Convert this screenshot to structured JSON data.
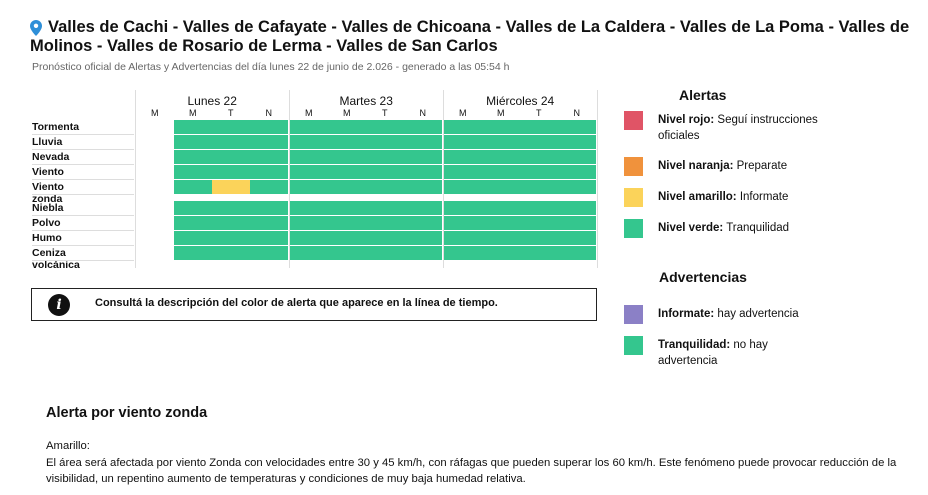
{
  "header": {
    "title_line1": "Valles de Cachi - Valles de Cafayate - Valles de Chicoana - Valles de La Caldera - Valles de La Poma - Valles de",
    "title_line2": "Molinos - Valles de Rosario de Lerma - Valles de San Carlos",
    "subtitle": "Pronóstico oficial de Alertas y Advertencias del día lunes 22 de junio de 2.026 - generado a las 05:54 h"
  },
  "timeline": {
    "days": [
      {
        "label": "Lunes 22",
        "slots": [
          "M",
          "M",
          "T",
          "N"
        ]
      },
      {
        "label": "Martes 23",
        "slots": [
          "M",
          "M",
          "T",
          "N"
        ]
      },
      {
        "label": "Miércoles 24",
        "slots": [
          "M",
          "M",
          "T",
          "N"
        ]
      }
    ],
    "alert_rows": [
      {
        "label": "Tormenta",
        "levels": [
          "none",
          "verde",
          "verde",
          "verde",
          "verde",
          "verde",
          "verde",
          "verde",
          "verde",
          "verde",
          "verde",
          "verde"
        ]
      },
      {
        "label": "Lluvia",
        "levels": [
          "none",
          "verde",
          "verde",
          "verde",
          "verde",
          "verde",
          "verde",
          "verde",
          "verde",
          "verde",
          "verde",
          "verde"
        ]
      },
      {
        "label": "Nevada",
        "levels": [
          "none",
          "verde",
          "verde",
          "verde",
          "verde",
          "verde",
          "verde",
          "verde",
          "verde",
          "verde",
          "verde",
          "verde"
        ]
      },
      {
        "label": "Viento",
        "levels": [
          "none",
          "verde",
          "verde",
          "verde",
          "verde",
          "verde",
          "verde",
          "verde",
          "verde",
          "verde",
          "verde",
          "verde"
        ]
      },
      {
        "label": "Viento zonda",
        "levels": [
          "none",
          "verde",
          "amarillo",
          "verde",
          "verde",
          "verde",
          "verde",
          "verde",
          "verde",
          "verde",
          "verde",
          "verde"
        ]
      }
    ],
    "warning_rows": [
      {
        "label": "Niebla",
        "levels": [
          "none",
          "verde",
          "verde",
          "verde",
          "verde",
          "verde",
          "verde",
          "verde",
          "verde",
          "verde",
          "verde",
          "verde"
        ]
      },
      {
        "label": "Polvo",
        "levels": [
          "none",
          "verde",
          "verde",
          "verde",
          "verde",
          "verde",
          "verde",
          "verde",
          "verde",
          "verde",
          "verde",
          "verde"
        ]
      },
      {
        "label": "Humo",
        "levels": [
          "none",
          "verde",
          "verde",
          "verde",
          "verde",
          "verde",
          "verde",
          "verde",
          "verde",
          "verde",
          "verde",
          "verde"
        ]
      },
      {
        "label": "Ceniza volcánica",
        "levels": [
          "none",
          "verde",
          "verde",
          "verde",
          "verde",
          "verde",
          "verde",
          "verde",
          "verde",
          "verde",
          "verde",
          "verde"
        ]
      }
    ]
  },
  "info_box": {
    "icon": "info-icon",
    "text": "Consultá la descripción del color de alerta que aparece en la línea de tiempo."
  },
  "colors": {
    "rojo": "#e05466",
    "naranja": "#f0923c",
    "amarillo": "#fbd35a",
    "verde": "#34c68e",
    "violeta": "#8b80c6",
    "none": "#ffffff"
  },
  "legend_alertas": {
    "title": "Alertas",
    "items": [
      {
        "level": "rojo",
        "name": "Nivel rojo:",
        "desc": "Seguí instrucciones oficiales"
      },
      {
        "level": "naranja",
        "name": "Nivel naranja:",
        "desc": "Preparate"
      },
      {
        "level": "amarillo",
        "name": "Nivel amarillo:",
        "desc": "Informate"
      },
      {
        "level": "verde",
        "name": "Nivel verde:",
        "desc": "Tranquilidad"
      }
    ]
  },
  "legend_advertencias": {
    "title": "Advertencias",
    "items": [
      {
        "level": "violeta",
        "name": "Informate:",
        "desc": "hay advertencia"
      },
      {
        "level": "verde",
        "name": "Tranquilidad:",
        "desc": "no hay advertencia"
      }
    ]
  },
  "alert_detail": {
    "title": "Alerta por viento zonda",
    "level_label": "Amarillo:",
    "description": "El área será afectada por viento Zonda con velocidades entre 30 y 45 km/h, con ráfagas que pueden superar los 60 km/h. Este fenómeno puede provocar reducción de la visibilidad, un repentino aumento de temperaturas y condiciones de muy baja humedad relativa."
  }
}
